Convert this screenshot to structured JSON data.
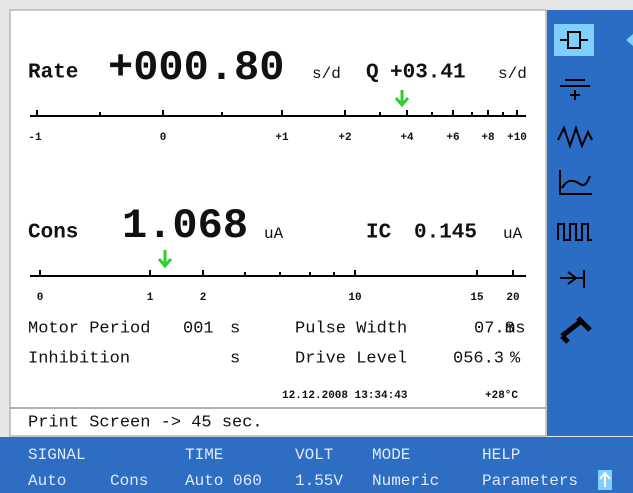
{
  "header": {
    "rate_label": "Rate",
    "rate_value": "+000.80",
    "rate_unit": "s/d",
    "q_label": "Q",
    "q_value": "+03.41",
    "q_unit": "s/d"
  },
  "rate_scale": {
    "labels": [
      "-1",
      "0",
      "+1",
      "+2",
      "+4",
      "+6",
      "+8",
      "+10"
    ]
  },
  "current": {
    "cons_label": "Cons",
    "cons_value": "1.068",
    "cons_unit": "uA",
    "ic_label": "IC",
    "ic_value": "0.145",
    "ic_unit": "uA"
  },
  "current_scale": {
    "labels": [
      "0",
      "1",
      "2",
      "10",
      "15",
      "20"
    ]
  },
  "params": [
    {
      "label": "Motor Period",
      "value": "001",
      "unit": "s"
    },
    {
      "label": "Pulse Width",
      "value": "07.8",
      "unit": "ms"
    },
    {
      "label": "Inhibition",
      "unit": "s"
    },
    {
      "label": "Drive Level",
      "value": "056.3",
      "unit": "%"
    }
  ],
  "status": {
    "datetime": "12.12.2008 13:34:43",
    "temperature": "+28°C"
  },
  "message": "Print Screen -> 45 sec.",
  "menu": [
    {
      "title": "SIGNAL",
      "values": [
        "Auto",
        "Cons"
      ]
    },
    {
      "title": "TIME",
      "values": [
        "Auto 060"
      ]
    },
    {
      "title": "VOLT",
      "values": [
        "1.55V"
      ]
    },
    {
      "title": "MODE",
      "values": [
        "Numeric"
      ]
    },
    {
      "title": "HELP",
      "values": [
        "Parameters"
      ]
    }
  ]
}
